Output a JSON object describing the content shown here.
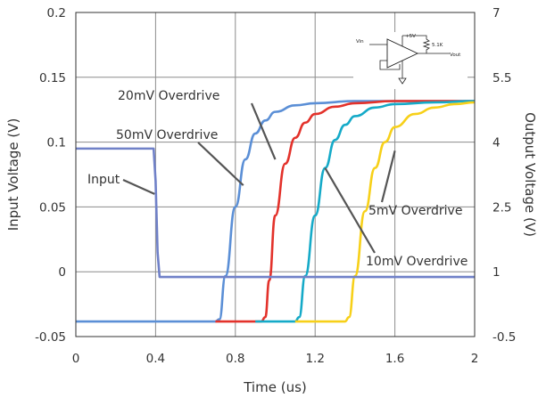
{
  "chart_data": {
    "type": "line",
    "xlabel": "Time (us)",
    "ylabel": "Input Voltage (V)",
    "y2label": "Output Voltage (V)",
    "xlim": [
      0,
      2
    ],
    "ylim": [
      -0.05,
      0.2
    ],
    "y2lim": [
      -0.5,
      7
    ],
    "xticks": [
      "0",
      "0.4",
      "0.8",
      "1.2",
      "1.6",
      "2"
    ],
    "xtick_values": [
      0,
      0.4,
      0.8,
      1.2,
      1.6,
      2
    ],
    "yticks": [
      "-0.05",
      "0",
      "0.05",
      "0.1",
      "0.15",
      "0.2"
    ],
    "ytick_values": [
      -0.05,
      0,
      0.05,
      0.1,
      0.15,
      0.2
    ],
    "y2ticks": [
      "-0.5",
      "1",
      "2.5",
      "4",
      "5.5",
      "7"
    ],
    "y2tick_values": [
      -0.5,
      1,
      2.5,
      4,
      5.5,
      7
    ],
    "grid": true,
    "series": [
      {
        "name": "Input",
        "axis": "left",
        "color": "#7081c8",
        "x": [
          0,
          0.39,
          0.4,
          0.41,
          0.42,
          2.0
        ],
        "y": [
          0.095,
          0.095,
          0.07,
          0.015,
          -0.004,
          -0.004
        ]
      },
      {
        "name": "50mV Overdrive",
        "axis": "right",
        "color": "#5b8fd6",
        "x": [
          0,
          0.7,
          0.72,
          0.75,
          0.8,
          0.85,
          0.9,
          0.95,
          1.0,
          1.1,
          1.2,
          1.4,
          2.0
        ],
        "y": [
          -0.15,
          -0.15,
          -0.1,
          0.9,
          2.5,
          3.6,
          4.2,
          4.5,
          4.7,
          4.85,
          4.9,
          4.95,
          4.95
        ]
      },
      {
        "name": "20mV Overdrive",
        "axis": "right",
        "color": "#e3322b",
        "x": [
          0.7,
          0.93,
          0.95,
          0.97,
          1.0,
          1.05,
          1.1,
          1.15,
          1.2,
          1.3,
          1.4,
          1.6,
          2.0
        ],
        "y": [
          -0.15,
          -0.15,
          -0.05,
          0.8,
          2.3,
          3.5,
          4.1,
          4.45,
          4.65,
          4.82,
          4.9,
          4.95,
          4.95
        ]
      },
      {
        "name": "10mV Overdrive",
        "axis": "right",
        "color": "#15aac8",
        "x": [
          0.9,
          1.1,
          1.12,
          1.15,
          1.2,
          1.25,
          1.3,
          1.35,
          1.4,
          1.5,
          1.6,
          1.8,
          2.0
        ],
        "y": [
          -0.15,
          -0.15,
          -0.05,
          0.9,
          2.3,
          3.4,
          4.05,
          4.4,
          4.6,
          4.8,
          4.88,
          4.92,
          4.95
        ]
      },
      {
        "name": "5mV Overdrive",
        "axis": "right",
        "color": "#f7d019",
        "x": [
          1.1,
          1.35,
          1.37,
          1.4,
          1.45,
          1.5,
          1.55,
          1.6,
          1.7,
          1.8,
          1.9,
          2.0
        ],
        "y": [
          -0.15,
          -0.15,
          -0.05,
          0.9,
          2.4,
          3.4,
          4.0,
          4.35,
          4.65,
          4.8,
          4.88,
          4.92
        ]
      }
    ],
    "annotations": [
      {
        "text": "20mV Overdrive",
        "series": "20mV Overdrive"
      },
      {
        "text": "50mV Overdrive",
        "series": "50mV Overdrive"
      },
      {
        "text": "Input",
        "series": "Input"
      },
      {
        "text": "5mV Overdrive",
        "series": "5mV Overdrive"
      },
      {
        "text": "10mV Overdrive",
        "series": "10mV Overdrive"
      }
    ],
    "schematic": {
      "supply_label": "+5V",
      "input_label": "Vin",
      "resistor_label": "5.1K",
      "output_label": "Vout"
    }
  }
}
